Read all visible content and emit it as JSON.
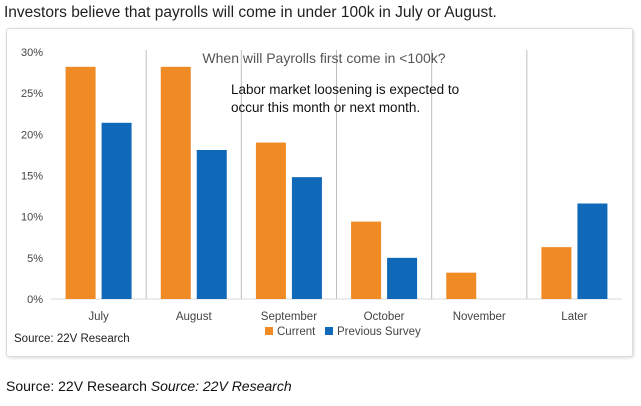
{
  "headline": "Investors believe that payrolls will come in under 100k in July or August.",
  "panel_source": "Source: 22V Research",
  "page_source": {
    "plain": "Source: 22V Research",
    "italic": "Source: 22V Research"
  },
  "colors": {
    "current": "#f08a24",
    "previous": "#1068b8",
    "grid": "#d9d9d9",
    "divider": "#bfbfbf"
  },
  "chart_data": {
    "type": "bar",
    "title": "When will Payrolls first come in <100k?",
    "annotation": [
      "Labor market loosening is expected to",
      "occur this month or next month."
    ],
    "categories": [
      "July",
      "August",
      "September",
      "October",
      "November",
      "Later"
    ],
    "series": [
      {
        "name": "Current",
        "values": [
          28.2,
          28.2,
          19.0,
          9.4,
          3.2,
          6.3
        ]
      },
      {
        "name": "Previous Survey",
        "values": [
          21.4,
          18.1,
          14.8,
          5.0,
          0,
          11.6
        ]
      }
    ],
    "yticks": [
      "0%",
      "5%",
      "10%",
      "15%",
      "20%",
      "25%",
      "30%"
    ],
    "ylim": [
      0,
      30
    ],
    "grid": false,
    "legend": "bottom"
  }
}
